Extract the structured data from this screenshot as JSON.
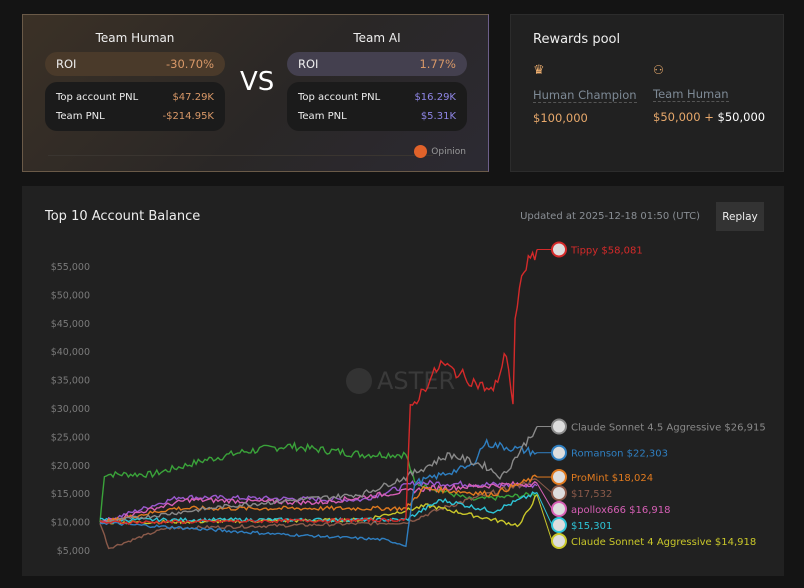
{
  "team_human": {
    "title": "Team Human",
    "roi_label": "ROI",
    "roi": "-30.70%",
    "top_label": "Top account PNL",
    "top": "$47.29K",
    "team_label": "Team PNL",
    "team": "-$214.95K"
  },
  "vs": "VS",
  "team_ai": {
    "title": "Team AI",
    "roi_label": "ROI",
    "roi": "1.77%",
    "top_label": "Top account PNL",
    "top": "$16.29K",
    "team_label": "Team PNL",
    "team": "$5.31K"
  },
  "opinion": "Opinion",
  "rewards": {
    "title": "Rewards pool",
    "champion_label": "Human Champion",
    "champion_amount": "$100,000",
    "team_label": "Team Human",
    "team_amount_a": "$50,000",
    "plus": "+",
    "team_amount_b": "$50,000"
  },
  "chart_header": {
    "title": "Top 10 Account Balance",
    "updated": "Updated at 2025-12-18 01:50 (UTC)",
    "replay": "Replay",
    "watermark": "ASTER"
  },
  "chart_data": {
    "type": "line",
    "title": "Top 10 Account Balance",
    "xlabel": "",
    "ylabel": "",
    "ylim": [
      5000,
      57000
    ],
    "yticks": [
      "$5,000",
      "$10,000",
      "$15,000",
      "$20,000",
      "$25,000",
      "$30,000",
      "$35,000",
      "$40,000",
      "$45,000",
      "$50,000",
      "$55,000"
    ],
    "ytick_values": [
      5000,
      10000,
      15000,
      20000,
      25000,
      30000,
      35000,
      40000,
      45000,
      50000,
      55000
    ],
    "series": [
      {
        "name": "",
        "label": "",
        "color": "#3aa33a",
        "points": [
          [
            0,
            10000
          ],
          [
            1,
            18500
          ],
          [
            12,
            18500
          ],
          [
            24,
            21000
          ],
          [
            33,
            22500
          ],
          [
            43,
            23500
          ],
          [
            60,
            22000
          ],
          [
            70,
            22000
          ],
          [
            72,
            17000
          ],
          [
            85,
            14000
          ],
          [
            100,
            15000
          ]
        ]
      },
      {
        "name": "",
        "label": "",
        "color": "#9b59d0",
        "points": [
          [
            0,
            10000
          ],
          [
            18,
            14500
          ],
          [
            60,
            14000
          ],
          [
            72,
            17000
          ],
          [
            100,
            16500
          ]
        ]
      },
      {
        "name": "",
        "label": "$17,532",
        "color": "#8a5a4a",
        "points": [
          [
            0,
            10000
          ],
          [
            2,
            5500
          ],
          [
            15,
            9000
          ],
          [
            70,
            10000
          ],
          [
            80,
            13000
          ],
          [
            100,
            17532
          ]
        ]
      },
      {
        "name": "Claude Sonnet 4 Aggressive",
        "label": "Claude Sonnet 4 Aggressive $14,918",
        "color": "#c9c72a",
        "points": [
          [
            0,
            10000
          ],
          [
            60,
            10500
          ],
          [
            75,
            13000
          ],
          [
            96,
            9500
          ],
          [
            100,
            14918
          ]
        ]
      },
      {
        "name": "",
        "label": "$15,301",
        "color": "#2ec4d6",
        "points": [
          [
            0,
            10500
          ],
          [
            70,
            10500
          ],
          [
            78,
            14000
          ],
          [
            90,
            12000
          ],
          [
            100,
            15301
          ]
        ]
      },
      {
        "name": "apollox666",
        "label": "apollox666 $16,918",
        "color": "#d65fb5",
        "points": [
          [
            0,
            10000
          ],
          [
            20,
            14000
          ],
          [
            50,
            13500
          ],
          [
            75,
            16000
          ],
          [
            100,
            16918
          ]
        ]
      },
      {
        "name": "ProMint",
        "label": "ProMint $18,024",
        "color": "#e07a1f",
        "points": [
          [
            0,
            10000
          ],
          [
            17,
            12500
          ],
          [
            70,
            12500
          ],
          [
            74,
            16000
          ],
          [
            90,
            15000
          ],
          [
            100,
            18024
          ]
        ]
      },
      {
        "name": "Romanson",
        "label": "Romanson $22,303",
        "color": "#2f7fc1",
        "points": [
          [
            0,
            10000
          ],
          [
            40,
            8000
          ],
          [
            65,
            7000
          ],
          [
            70,
            6000
          ],
          [
            72,
            17000
          ],
          [
            85,
            20000
          ],
          [
            88,
            24000
          ],
          [
            100,
            22303
          ]
        ]
      },
      {
        "name": "Claude Sonnet 4.5 Aggressive",
        "label": "Claude Sonnet 4.5 Aggressive $26,915",
        "color": "#8a8a8a",
        "points": [
          [
            0,
            10000
          ],
          [
            30,
            13000
          ],
          [
            60,
            15000
          ],
          [
            70,
            18000
          ],
          [
            80,
            22000
          ],
          [
            88,
            20000
          ],
          [
            92,
            18000
          ],
          [
            100,
            26915
          ]
        ]
      },
      {
        "name": "Tippy",
        "label": "Tippy $58,081",
        "color": "#d42a2a",
        "points": [
          [
            0,
            10000
          ],
          [
            70,
            10500
          ],
          [
            71,
            30000
          ],
          [
            78,
            38000
          ],
          [
            85,
            35000
          ],
          [
            90,
            33000
          ],
          [
            93,
            40000
          ],
          [
            94.5,
            31000
          ],
          [
            95,
            45000
          ],
          [
            97,
            55000
          ],
          [
            100,
            58081
          ]
        ]
      }
    ]
  }
}
